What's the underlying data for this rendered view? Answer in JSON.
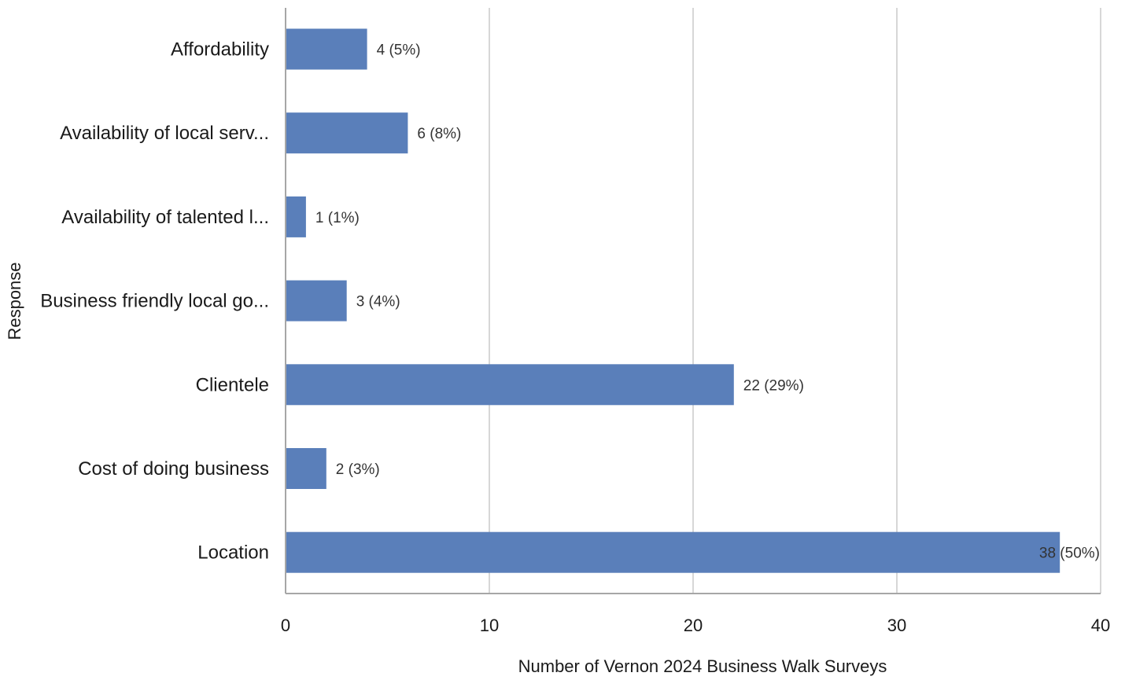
{
  "chart_data": {
    "type": "bar",
    "orientation": "horizontal",
    "categories": [
      "Affordability",
      "Availability of local serv...",
      "Availability of talented l...",
      "Business friendly local go...",
      "Clientele",
      "Cost of doing business",
      "Location"
    ],
    "values": [
      4,
      6,
      1,
      3,
      22,
      2,
      38
    ],
    "data_labels": [
      "4 (5%)",
      "6 (8%)",
      "1 (1%)",
      "3 (4%)",
      "22 (29%)",
      "2 (3%)",
      "38 (50%)"
    ],
    "title": "",
    "xlabel": "Number of Vernon 2024 Business Walk Surveys",
    "ylabel": "Response",
    "xlim": [
      0,
      40
    ],
    "xticks": [
      "0",
      "10",
      "20",
      "30",
      "40"
    ],
    "grid": "vertical",
    "legend": "none",
    "colors": {
      "bar": "#5a7fba",
      "grid": "#d7d7d7",
      "axis": "#a6a6a6"
    }
  }
}
